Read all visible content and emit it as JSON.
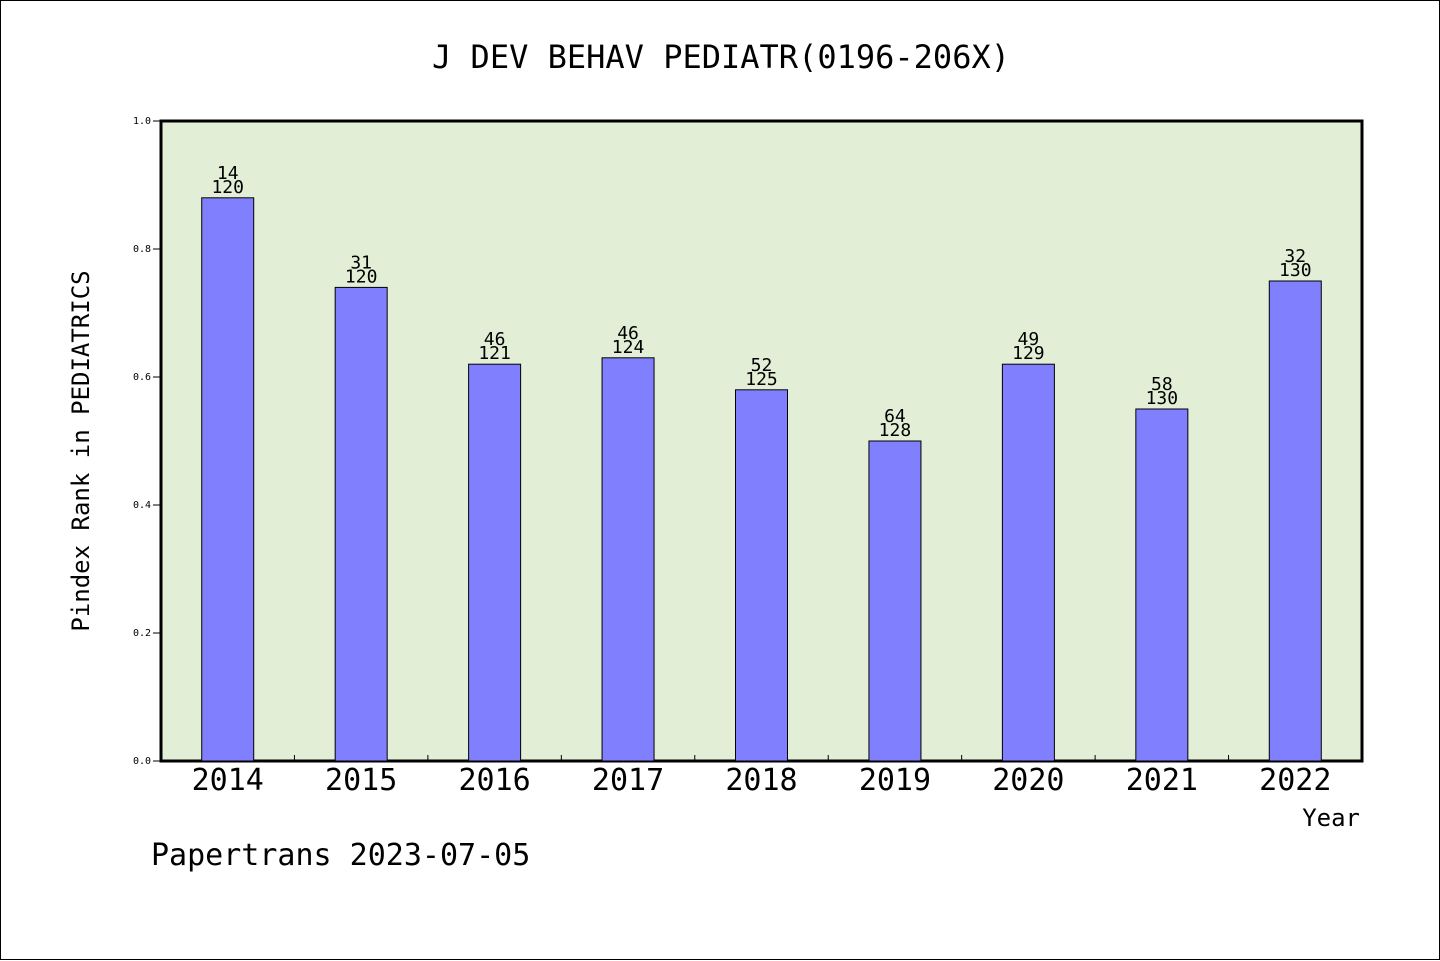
{
  "chart_data": {
    "type": "bar",
    "title": "J DEV BEHAV PEDIATR(0196-206X)",
    "xlabel": "Year",
    "ylabel": "Pindex Rank in PEDIATRICS",
    "ylim": [
      0.0,
      1.0
    ],
    "yticks": [
      "0.0",
      "0.2",
      "0.4",
      "0.6",
      "0.8",
      "1.0"
    ],
    "categories": [
      "2014",
      "2015",
      "2016",
      "2017",
      "2018",
      "2019",
      "2020",
      "2021",
      "2022"
    ],
    "values": [
      0.88,
      0.74,
      0.62,
      0.63,
      0.58,
      0.5,
      0.62,
      0.55,
      0.75
    ],
    "rank": [
      "14",
      "31",
      "46",
      "46",
      "52",
      "64",
      "49",
      "58",
      "32"
    ],
    "total": [
      "120",
      "120",
      "121",
      "124",
      "125",
      "128",
      "129",
      "130",
      "130"
    ],
    "plot_background": "#e2efd6",
    "bar_color": "#8080ff",
    "grid": false,
    "legend": "none"
  },
  "footer": "Papertrans 2023-07-05"
}
